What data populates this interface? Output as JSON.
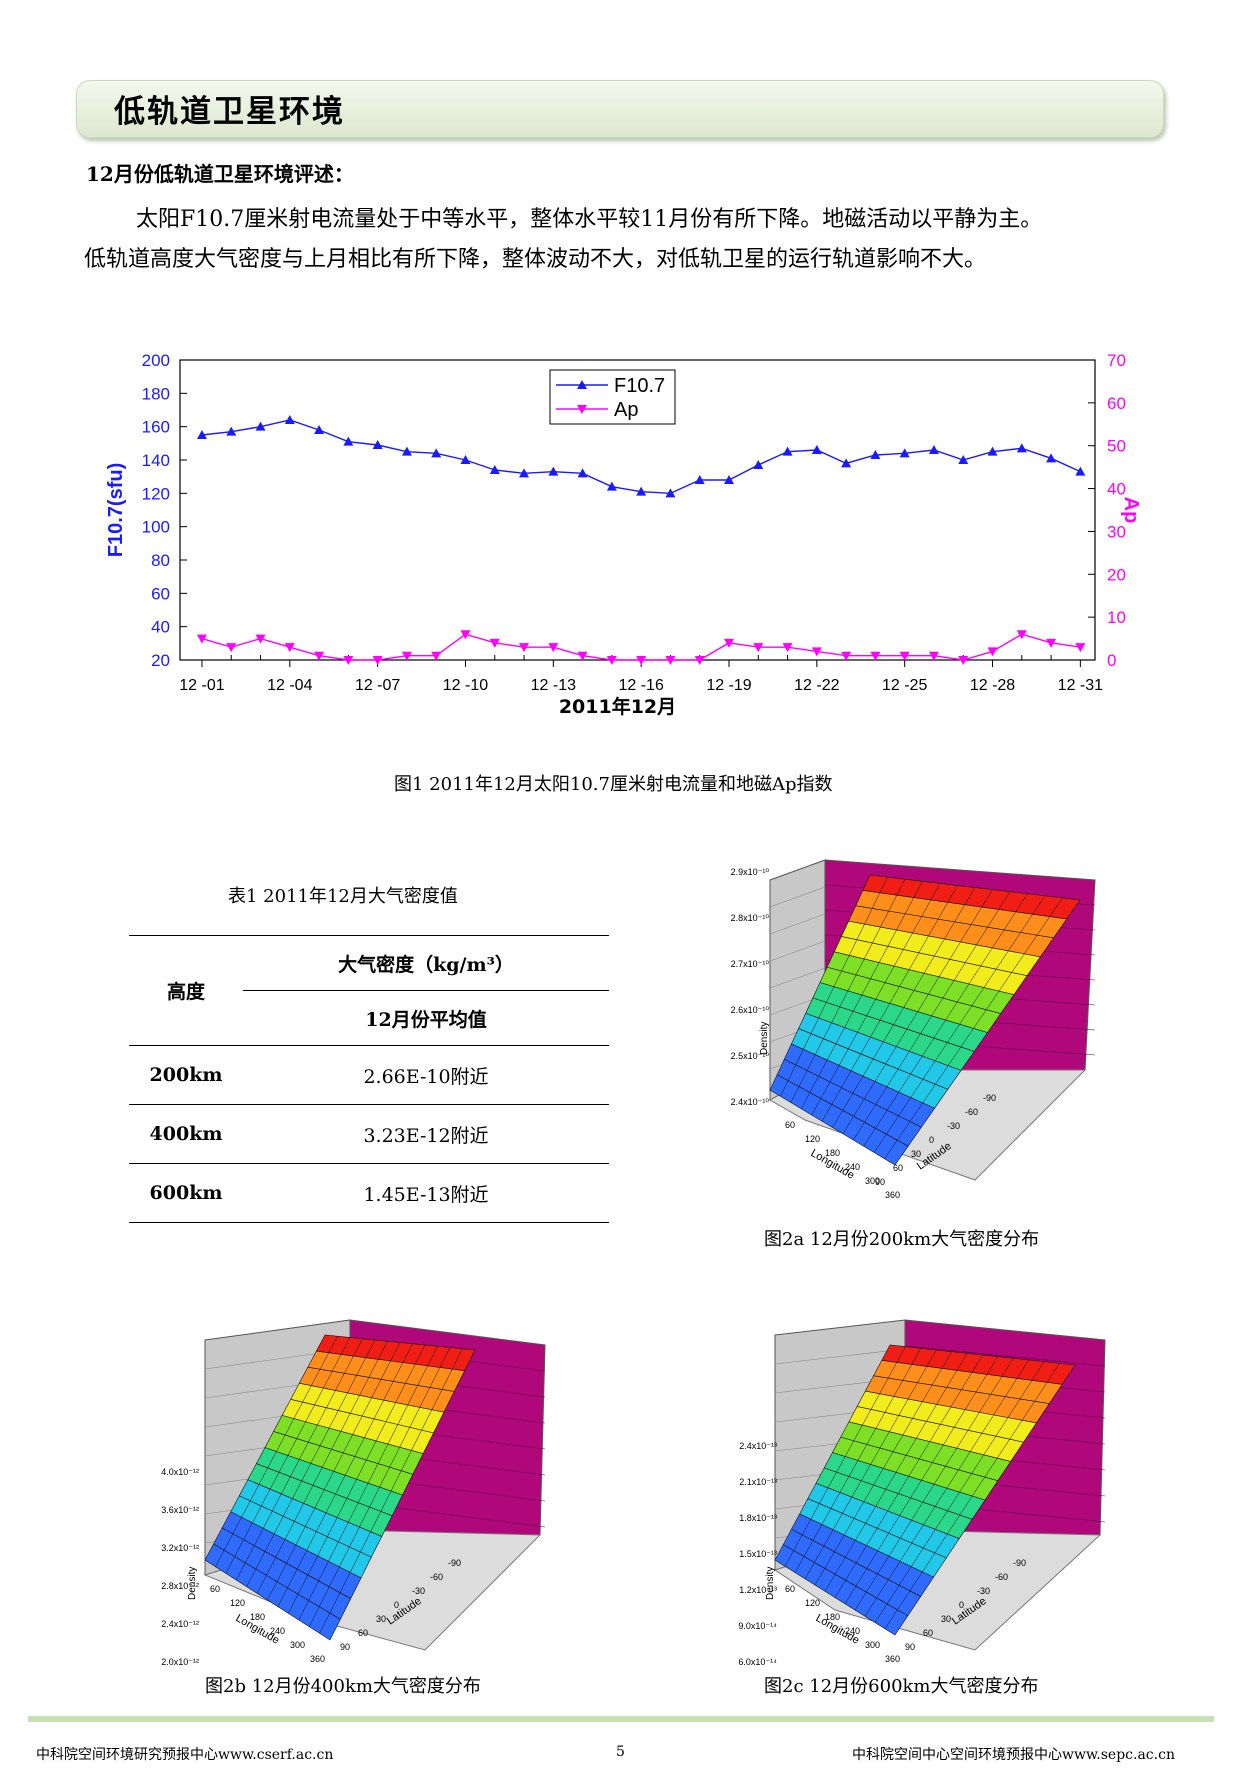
{
  "header": {
    "title": "低轨道卫星环境"
  },
  "heading": "12月份低轨道卫星环境评述：",
  "paragraph": {
    "line1": "太阳F10.7厘米射电流量处于中等水平，整体水平较11月份有所下降。地磁活动以平静为主。",
    "line2": "低轨道高度大气密度与上月相比有所下降，整体波动不大，对低轨卫星的运行轨道影响不大。"
  },
  "chart_data": {
    "type": "line",
    "xlabel": "2011年12月",
    "ylabel": "F10.7(sfu)",
    "y2label": "Ap",
    "ylim": [
      20,
      200
    ],
    "y2lim": [
      0,
      70
    ],
    "yticks": [
      "20",
      "40",
      "60",
      "80",
      "100",
      "120",
      "140",
      "160",
      "180",
      "200"
    ],
    "y2ticks": [
      "0",
      "10",
      "20",
      "30",
      "40",
      "50",
      "60",
      "70"
    ],
    "xticks": [
      "12 -01",
      "12 -04",
      "12 -07",
      "12 -10",
      "12 -13",
      "12 -16",
      "12 -19",
      "12 -22",
      "12 -25",
      "12 -28",
      "12 -31"
    ],
    "legend_position": "top-center",
    "x": [
      1,
      2,
      3,
      4,
      5,
      6,
      7,
      8,
      9,
      10,
      11,
      12,
      13,
      14,
      15,
      16,
      17,
      18,
      19,
      20,
      21,
      22,
      23,
      24,
      25,
      26,
      27,
      28,
      29,
      30,
      31
    ],
    "series": [
      {
        "name": "F10.7",
        "axis": "left",
        "color": "#1a1aff",
        "marker": "triangle-up",
        "values": [
          155,
          157,
          160,
          164,
          158,
          151,
          149,
          145,
          144,
          140,
          134,
          132,
          133,
          132,
          124,
          121,
          120,
          128,
          128,
          137,
          145,
          146,
          138,
          143,
          144,
          146,
          140,
          145,
          147,
          141,
          133
        ]
      },
      {
        "name": "Ap",
        "axis": "right",
        "color": "#ff00ff",
        "marker": "triangle-down",
        "values": [
          5,
          3,
          5,
          3,
          1,
          0,
          0,
          1,
          1,
          6,
          4,
          3,
          3,
          1,
          0,
          0,
          0,
          0,
          4,
          3,
          3,
          2,
          1,
          1,
          1,
          1,
          0,
          2,
          6,
          4,
          3
        ]
      }
    ]
  },
  "fig1_caption": "图1 2011年12月太阳10.7厘米射电流量和地磁Ap指数",
  "table": {
    "caption": "表1   2011年12月大气密度值",
    "col_altitude": "高度",
    "col_density": "大气密度（kg/m³）",
    "col_avg": "12月份平均值",
    "rows": [
      {
        "alt": "200km",
        "val": "2.66E-10附近"
      },
      {
        "alt": "400km",
        "val": "3.23E-12附近"
      },
      {
        "alt": "600km",
        "val": "1.45E-13附近"
      }
    ]
  },
  "surfaces": {
    "density_label": "Density",
    "lon_label": "Longitude",
    "lat_label": "Latitude",
    "fig2a": {
      "caption": "图2a  12月份200km大气密度分布",
      "zticks": [
        "2.4x10⁻¹⁰",
        "2.5x10⁻¹⁰",
        "2.6x10⁻¹⁰",
        "2.7x10⁻¹⁰",
        "2.8x10⁻¹⁰",
        "2.9x10⁻¹⁰"
      ]
    },
    "fig2b": {
      "caption": "图2b  12月份400km大气密度分布",
      "zticks": [
        "2.0x10⁻¹²",
        "2.4x10⁻¹²",
        "2.8x10⁻¹²",
        "3.2x10⁻¹²",
        "3.6x10⁻¹²",
        "4.0x10⁻¹²"
      ]
    },
    "fig2c": {
      "caption": "图2c  12月份600km大气密度分布",
      "zticks": [
        "6.0x10⁻¹⁴",
        "9.0x10⁻¹⁴",
        "1.2x10⁻¹³",
        "1.5x10⁻¹³",
        "1.8x10⁻¹³",
        "2.1x10⁻¹³",
        "2.4x10⁻¹³"
      ]
    },
    "lon_ticks": [
      "60",
      "120",
      "180",
      "240",
      "300",
      "360"
    ],
    "lat_ticks": [
      "90",
      "60",
      "30",
      "0",
      "-30",
      "-60",
      "-90"
    ]
  },
  "footer": {
    "left": "中科院空间环境研究预报中心www.cserf.ac.cn",
    "page": "5",
    "right": "中科院空间中心空间环境预报中心www.sepc.ac.cn"
  }
}
